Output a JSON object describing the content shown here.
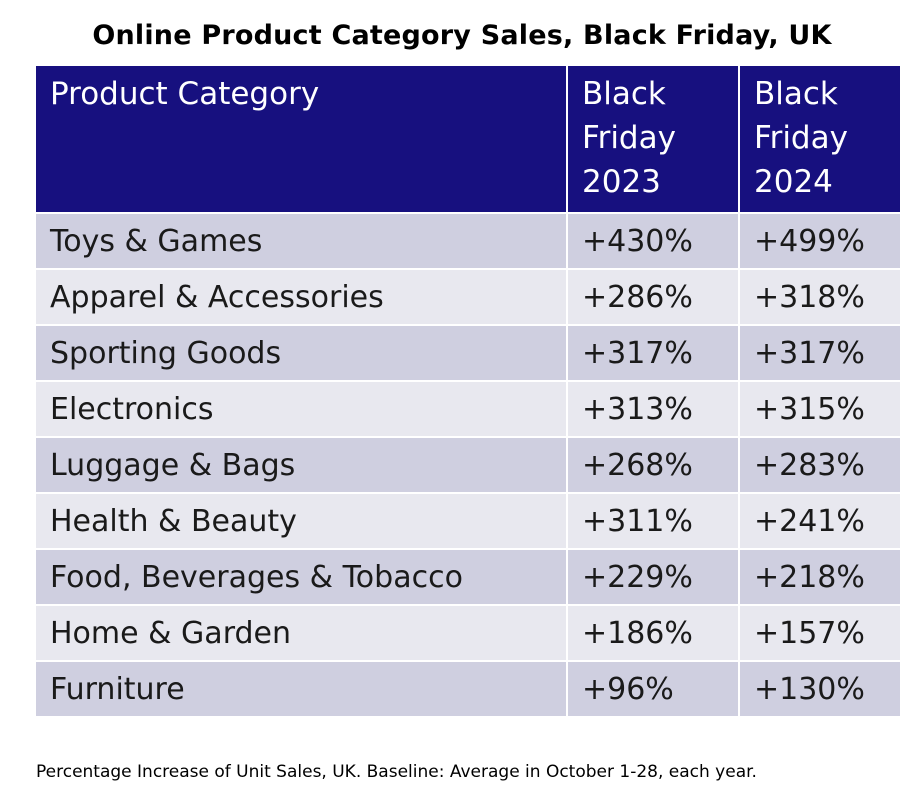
{
  "chart_data": {
    "type": "table",
    "title": "Online Product Category Sales, Black Friday, UK",
    "columns": [
      "Product Category",
      "Black Friday 2023",
      "Black Friday 2024"
    ],
    "header_lines": [
      [
        "Product Category"
      ],
      [
        "Black",
        "Friday",
        "2023"
      ],
      [
        "Black",
        "Friday",
        "2024"
      ]
    ],
    "rows": [
      {
        "category": "Toys & Games",
        "y2023": "+430%",
        "y2024": "+499%"
      },
      {
        "category": "Apparel & Accessories",
        "y2023": "+286%",
        "y2024": "+318%"
      },
      {
        "category": "Sporting Goods",
        "y2023": "+317%",
        "y2024": "+317%"
      },
      {
        "category": "Electronics",
        "y2023": "+313%",
        "y2024": "+315%"
      },
      {
        "category": "Luggage & Bags",
        "y2023": "+268%",
        "y2024": "+283%"
      },
      {
        "category": "Health & Beauty",
        "y2023": "+311%",
        "y2024": "+241%"
      },
      {
        "category": "Food, Beverages & Tobacco",
        "y2023": "+229%",
        "y2024": "+218%"
      },
      {
        "category": "Home & Garden",
        "y2023": "+186%",
        "y2024": "+157%"
      },
      {
        "category": "Furniture",
        "y2023": "+96%",
        "y2024": "+130%"
      }
    ],
    "footnote": "Percentage Increase of Unit Sales, UK. Baseline: Average in October 1-28, each year."
  },
  "colors": {
    "header_bg": "#17107f",
    "header_text": "#ffffff",
    "row_dark": "#cfcfe0",
    "row_light": "#e8e8ef"
  }
}
